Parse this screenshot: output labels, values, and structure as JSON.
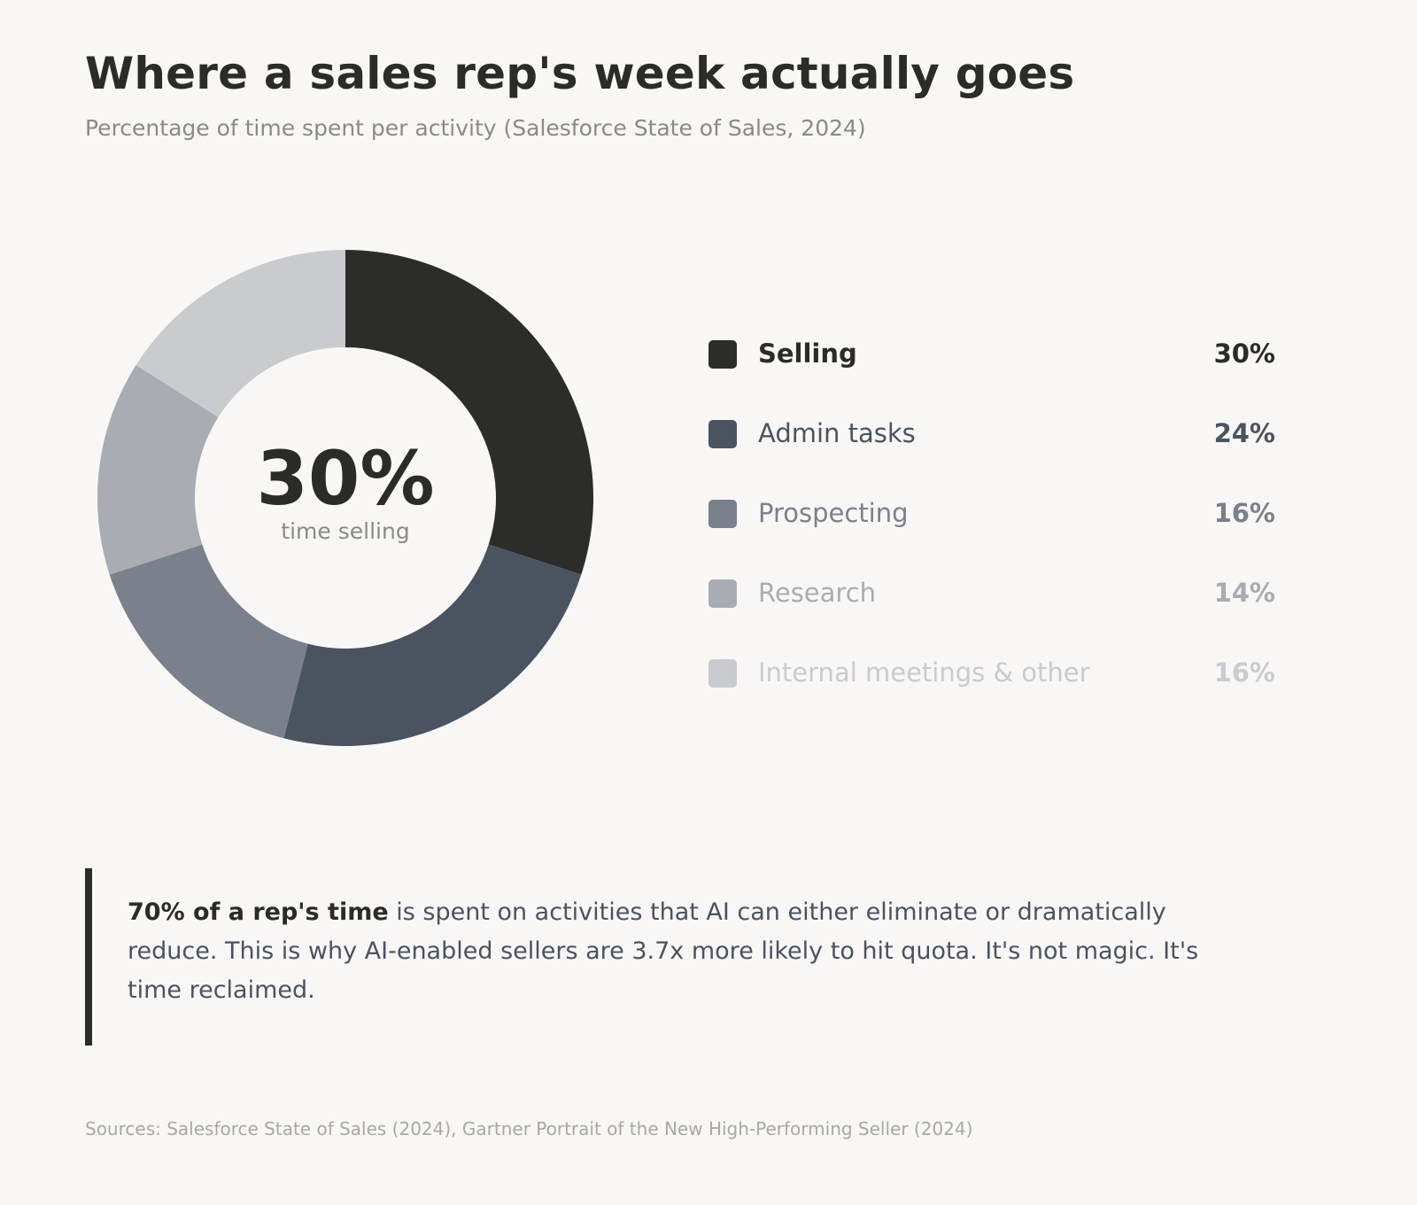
{
  "header": {
    "title": "Where a sales rep's week actually goes",
    "subtitle": "Percentage of time spent per activity (Salesforce State of Sales, 2024)"
  },
  "chart_data": {
    "type": "pie",
    "variant": "donut",
    "title": "Where a sales rep's week actually goes",
    "subtitle": "Percentage of time spent per activity (Salesforce State of Sales, 2024)",
    "center_value": "30%",
    "center_label": "time selling",
    "legend_position": "right",
    "slices": [
      {
        "label": "Selling",
        "value": 30,
        "value_label": "30%",
        "color": "#2c2c2a",
        "text_color": "#2b2b29",
        "bold_label": true
      },
      {
        "label": "Admin tasks",
        "value": 24,
        "value_label": "24%",
        "color": "#4a5461",
        "text_color": "#4a5461",
        "bold_label": false
      },
      {
        "label": "Prospecting",
        "value": 16,
        "value_label": "16%",
        "color": "#7a808c",
        "text_color": "#7a808c",
        "bold_label": false
      },
      {
        "label": "Research",
        "value": 14,
        "value_label": "14%",
        "color": "#a9acb3",
        "text_color": "#a9acb3",
        "bold_label": false
      },
      {
        "label": "Internal meetings & other",
        "value": 16,
        "value_label": "16%",
        "color": "#c9cbcf",
        "text_color": "#c9cbcf",
        "bold_label": false
      }
    ]
  },
  "insight": {
    "lead": "70% of a rep's time",
    "body": " is spent on activities that AI can either eliminate or dramatically reduce. This is why AI-enabled sellers are 3.7x more likely to hit quota. It's not magic. It's time reclaimed."
  },
  "footer": {
    "sources": "Sources: Salesforce State of Sales (2024), Gartner Portrait of the New High-Performing Seller (2024)"
  }
}
